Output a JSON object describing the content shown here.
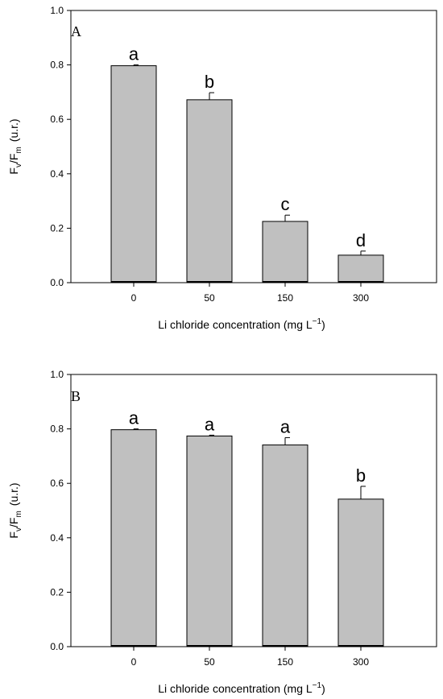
{
  "chart_data": [
    {
      "type": "bar",
      "panel_label": "A",
      "categories": [
        "0",
        "50",
        "150",
        "300"
      ],
      "values": [
        0.797,
        0.672,
        0.225,
        0.101
      ],
      "errors": [
        0.003,
        0.026,
        0.023,
        0.015
      ],
      "letters": [
        "a",
        "b",
        "c",
        "d"
      ],
      "xlabel": "Li chloride concentration (mg L",
      "xlabel_sup": "−1",
      "xlabel_close": ")",
      "ylabel_main": "F",
      "ylabel_sub1": "v",
      "ylabel_slash": "/F",
      "ylabel_sub2": "m",
      "ylabel_unit": "(u.r.)",
      "ylim": [
        0,
        1.0
      ],
      "yticks": [
        "0.0",
        "0.2",
        "0.4",
        "0.6",
        "0.8",
        "1.0"
      ],
      "bar_color": "#c0c0c0"
    },
    {
      "type": "bar",
      "panel_label": "B",
      "categories": [
        "0",
        "50",
        "150",
        "300"
      ],
      "values": [
        0.797,
        0.774,
        0.741,
        0.542
      ],
      "errors": [
        0.003,
        0.003,
        0.027,
        0.047
      ],
      "letters": [
        "a",
        "a",
        "a",
        "b"
      ],
      "xlabel": "Li chloride concentration (mg L",
      "xlabel_sup": "−1",
      "xlabel_close": ")",
      "ylabel_main": "F",
      "ylabel_sub1": "v",
      "ylabel_slash": "/F",
      "ylabel_sub2": "m",
      "ylabel_unit": "(u.r.)",
      "ylim": [
        0,
        1.0
      ],
      "yticks": [
        "0.0",
        "0.2",
        "0.4",
        "0.6",
        "0.8",
        "1.0"
      ],
      "bar_color": "#c0c0c0"
    }
  ]
}
